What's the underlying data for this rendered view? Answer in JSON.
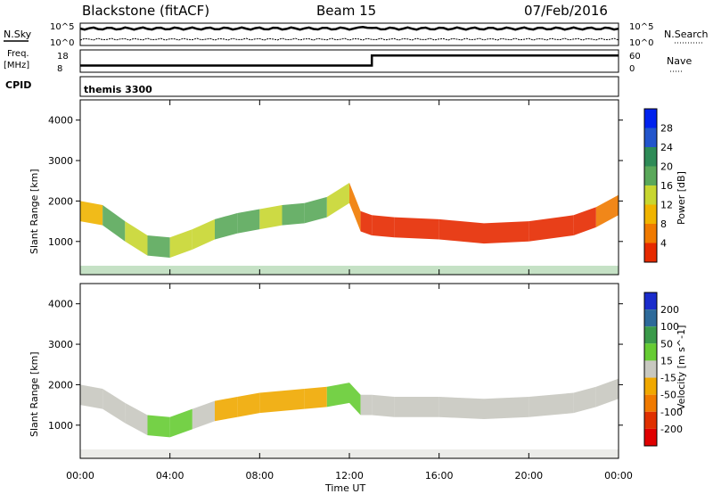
{
  "chart_data": {
    "type": "heatmap",
    "header": {
      "station": "Blackstone (fitACF)",
      "beam": "Beam 15",
      "date": "07/Feb/2016"
    },
    "noise_panel": {
      "left_label": "N.Sky",
      "right_label": "N.Search",
      "left_ticks": [
        "10^5",
        "10^0"
      ],
      "right_ticks": [
        "10^5",
        "10^0"
      ]
    },
    "freq_panel": {
      "left_label_1": "Freq.",
      "left_label_2": "[MHz]",
      "right_label": "Nave",
      "left_ticks": [
        "18",
        "8"
      ],
      "right_ticks": [
        "60",
        "0"
      ],
      "freq_steps": [
        {
          "t": 0,
          "v": 0.7
        },
        {
          "t": 13,
          "v": 0.7
        },
        {
          "t": 13,
          "v": 0.25
        },
        {
          "t": 24,
          "v": 0.25
        }
      ]
    },
    "cpid_panel": {
      "label": "CPID",
      "value": "themis 3300"
    },
    "time_axis": {
      "xlabel": "Time UT",
      "ticks": [
        "00:00",
        "04:00",
        "08:00",
        "12:00",
        "16:00",
        "20:00",
        "00:00"
      ],
      "tick_hours": [
        0,
        4,
        8,
        12,
        16,
        20,
        24
      ],
      "range_hours": [
        0,
        24
      ]
    },
    "range_axis": {
      "ylabel": "Slant Range [km]",
      "ticks": [
        "4000",
        "3000",
        "2000",
        "1000"
      ],
      "tick_values": [
        4000,
        3000,
        2000,
        1000
      ],
      "range_km": [
        180,
        4500
      ]
    },
    "power_panel": {
      "quantity": "Power",
      "colorbar_label": "Power [dB]",
      "colorbar_ticks": [
        "28",
        "24",
        "20",
        "16",
        "12",
        "8",
        "4"
      ],
      "colorbar_colors": [
        "#0022ee",
        "#2255cc",
        "#2e8b57",
        "#5aa85a",
        "#c8d630",
        "#f0b400",
        "#f07a00",
        "#e62a00"
      ],
      "band_center_km": [
        [
          0,
          1750
        ],
        [
          1,
          1650
        ],
        [
          2,
          1250
        ],
        [
          3,
          900
        ],
        [
          4,
          850
        ],
        [
          5,
          1050
        ],
        [
          6,
          1300
        ],
        [
          7,
          1450
        ],
        [
          8,
          1550
        ],
        [
          9,
          1650
        ],
        [
          10,
          1700
        ],
        [
          11,
          1850
        ],
        [
          12,
          2200
        ],
        [
          12.5,
          1500
        ],
        [
          13,
          1400
        ],
        [
          14,
          1350
        ],
        [
          16,
          1300
        ],
        [
          18,
          1200
        ],
        [
          20,
          1250
        ],
        [
          22,
          1400
        ],
        [
          23,
          1600
        ],
        [
          24,
          1900
        ]
      ],
      "band_color": [
        "#f0b400",
        "#5aa85a",
        "#c8d630",
        "#5aa85a",
        "#c8d630",
        "#c8d630",
        "#5aa85a",
        "#5aa85a",
        "#c8d630",
        "#5aa85a",
        "#5aa85a",
        "#c8d630",
        "#f07a00",
        "#e62a00",
        "#e62a00",
        "#e62a00",
        "#e62a00",
        "#e62a00",
        "#e62a00",
        "#e62a00",
        "#f07a00",
        "#c8d630"
      ]
    },
    "velocity_panel": {
      "quantity": "Velocity",
      "colorbar_label": "Velocity [m s^-1]",
      "colorbar_ticks": [
        "200",
        "100",
        "50",
        "15",
        "-15",
        "-50",
        "-100",
        "-200"
      ],
      "colorbar_colors": [
        "#1a2ccc",
        "#2d6a9a",
        "#3a9a4a",
        "#66cc33",
        "#c8c8c0",
        "#f0a800",
        "#f07a00",
        "#e03000",
        "#e00000"
      ],
      "band_center_km": [
        [
          0,
          1750
        ],
        [
          1,
          1650
        ],
        [
          2,
          1300
        ],
        [
          3,
          1000
        ],
        [
          4,
          950
        ],
        [
          5,
          1150
        ],
        [
          6,
          1350
        ],
        [
          7,
          1450
        ],
        [
          8,
          1550
        ],
        [
          9,
          1600
        ],
        [
          10,
          1650
        ],
        [
          11,
          1700
        ],
        [
          12,
          1800
        ],
        [
          12.5,
          1500
        ],
        [
          13,
          1500
        ],
        [
          14,
          1450
        ],
        [
          16,
          1450
        ],
        [
          18,
          1400
        ],
        [
          20,
          1450
        ],
        [
          22,
          1550
        ],
        [
          23,
          1700
        ],
        [
          24,
          1900
        ]
      ],
      "band_color": [
        "#c8c8c0",
        "#c8c8c0",
        "#c8c8c0",
        "#66cc33",
        "#66cc33",
        "#c8c8c0",
        "#f0a800",
        "#f0a800",
        "#f0a800",
        "#f0a800",
        "#f0a800",
        "#66cc33",
        "#66cc33",
        "#c8c8c0",
        "#c8c8c0",
        "#c8c8c0",
        "#c8c8c0",
        "#c8c8c0",
        "#c8c8c0",
        "#c8c8c0",
        "#c8c8c0",
        "#c8c8c0"
      ]
    }
  }
}
